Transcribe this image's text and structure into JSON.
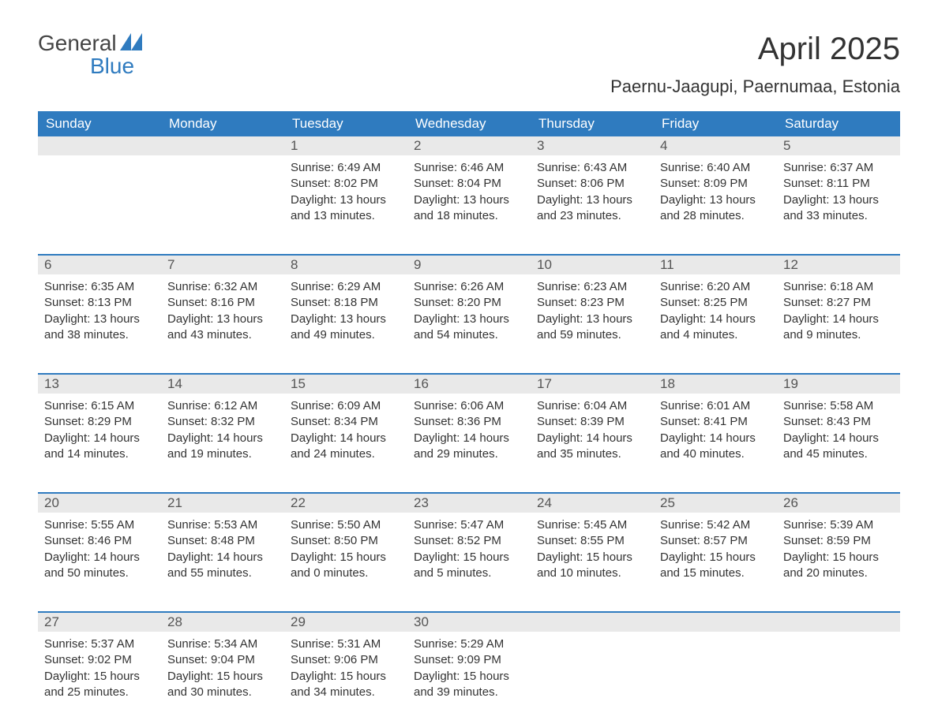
{
  "logo": {
    "word1": "General",
    "word2": "Blue"
  },
  "header": {
    "month_title": "April 2025",
    "location": "Paernu-Jaagupi, Paernumaa, Estonia"
  },
  "colors": {
    "brand_blue": "#2f7bbf",
    "band_gray": "#e9e9e9",
    "text": "#333333",
    "logo_gray": "#444444"
  },
  "day_headers": [
    "Sunday",
    "Monday",
    "Tuesday",
    "Wednesday",
    "Thursday",
    "Friday",
    "Saturday"
  ],
  "labels": {
    "sunrise": "Sunrise: ",
    "sunset": "Sunset: ",
    "daylight": "Daylight: "
  },
  "weeks": [
    [
      {
        "empty": true
      },
      {
        "empty": true
      },
      {
        "day": "1",
        "sunrise": "6:49 AM",
        "sunset": "8:02 PM",
        "daylight": "13 hours and 13 minutes."
      },
      {
        "day": "2",
        "sunrise": "6:46 AM",
        "sunset": "8:04 PM",
        "daylight": "13 hours and 18 minutes."
      },
      {
        "day": "3",
        "sunrise": "6:43 AM",
        "sunset": "8:06 PM",
        "daylight": "13 hours and 23 minutes."
      },
      {
        "day": "4",
        "sunrise": "6:40 AM",
        "sunset": "8:09 PM",
        "daylight": "13 hours and 28 minutes."
      },
      {
        "day": "5",
        "sunrise": "6:37 AM",
        "sunset": "8:11 PM",
        "daylight": "13 hours and 33 minutes."
      }
    ],
    [
      {
        "day": "6",
        "sunrise": "6:35 AM",
        "sunset": "8:13 PM",
        "daylight": "13 hours and 38 minutes."
      },
      {
        "day": "7",
        "sunrise": "6:32 AM",
        "sunset": "8:16 PM",
        "daylight": "13 hours and 43 minutes."
      },
      {
        "day": "8",
        "sunrise": "6:29 AM",
        "sunset": "8:18 PM",
        "daylight": "13 hours and 49 minutes."
      },
      {
        "day": "9",
        "sunrise": "6:26 AM",
        "sunset": "8:20 PM",
        "daylight": "13 hours and 54 minutes."
      },
      {
        "day": "10",
        "sunrise": "6:23 AM",
        "sunset": "8:23 PM",
        "daylight": "13 hours and 59 minutes."
      },
      {
        "day": "11",
        "sunrise": "6:20 AM",
        "sunset": "8:25 PM",
        "daylight": "14 hours and 4 minutes."
      },
      {
        "day": "12",
        "sunrise": "6:18 AM",
        "sunset": "8:27 PM",
        "daylight": "14 hours and 9 minutes."
      }
    ],
    [
      {
        "day": "13",
        "sunrise": "6:15 AM",
        "sunset": "8:29 PM",
        "daylight": "14 hours and 14 minutes."
      },
      {
        "day": "14",
        "sunrise": "6:12 AM",
        "sunset": "8:32 PM",
        "daylight": "14 hours and 19 minutes."
      },
      {
        "day": "15",
        "sunrise": "6:09 AM",
        "sunset": "8:34 PM",
        "daylight": "14 hours and 24 minutes."
      },
      {
        "day": "16",
        "sunrise": "6:06 AM",
        "sunset": "8:36 PM",
        "daylight": "14 hours and 29 minutes."
      },
      {
        "day": "17",
        "sunrise": "6:04 AM",
        "sunset": "8:39 PM",
        "daylight": "14 hours and 35 minutes."
      },
      {
        "day": "18",
        "sunrise": "6:01 AM",
        "sunset": "8:41 PM",
        "daylight": "14 hours and 40 minutes."
      },
      {
        "day": "19",
        "sunrise": "5:58 AM",
        "sunset": "8:43 PM",
        "daylight": "14 hours and 45 minutes."
      }
    ],
    [
      {
        "day": "20",
        "sunrise": "5:55 AM",
        "sunset": "8:46 PM",
        "daylight": "14 hours and 50 minutes."
      },
      {
        "day": "21",
        "sunrise": "5:53 AM",
        "sunset": "8:48 PM",
        "daylight": "14 hours and 55 minutes."
      },
      {
        "day": "22",
        "sunrise": "5:50 AM",
        "sunset": "8:50 PM",
        "daylight": "15 hours and 0 minutes."
      },
      {
        "day": "23",
        "sunrise": "5:47 AM",
        "sunset": "8:52 PM",
        "daylight": "15 hours and 5 minutes."
      },
      {
        "day": "24",
        "sunrise": "5:45 AM",
        "sunset": "8:55 PM",
        "daylight": "15 hours and 10 minutes."
      },
      {
        "day": "25",
        "sunrise": "5:42 AM",
        "sunset": "8:57 PM",
        "daylight": "15 hours and 15 minutes."
      },
      {
        "day": "26",
        "sunrise": "5:39 AM",
        "sunset": "8:59 PM",
        "daylight": "15 hours and 20 minutes."
      }
    ],
    [
      {
        "day": "27",
        "sunrise": "5:37 AM",
        "sunset": "9:02 PM",
        "daylight": "15 hours and 25 minutes."
      },
      {
        "day": "28",
        "sunrise": "5:34 AM",
        "sunset": "9:04 PM",
        "daylight": "15 hours and 30 minutes."
      },
      {
        "day": "29",
        "sunrise": "5:31 AM",
        "sunset": "9:06 PM",
        "daylight": "15 hours and 34 minutes."
      },
      {
        "day": "30",
        "sunrise": "5:29 AM",
        "sunset": "9:09 PM",
        "daylight": "15 hours and 39 minutes."
      },
      {
        "empty": true
      },
      {
        "empty": true
      },
      {
        "empty": true
      }
    ]
  ]
}
